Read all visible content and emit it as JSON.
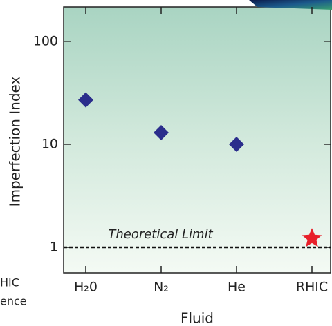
{
  "chart_data": {
    "type": "scatter",
    "categories": [
      "H₂0",
      "N₂",
      "He",
      "RHIC"
    ],
    "values": [
      27,
      13,
      10,
      1.22
    ],
    "markers": [
      "diamond",
      "diamond",
      "diamond",
      "star"
    ],
    "colors": [
      "#2b2e8c",
      "#2b2e8c",
      "#2b2e8c",
      "#e8202a"
    ],
    "ylabel": "Imperfection Index",
    "xlabel": "Fluid",
    "ylim": [
      0.565,
      216
    ],
    "yticks": [
      1,
      10,
      100
    ],
    "log_y": true,
    "limit": {
      "value": 1,
      "label": "Theoretical Limit"
    },
    "side_text": [
      "HIC",
      "ence"
    ]
  }
}
